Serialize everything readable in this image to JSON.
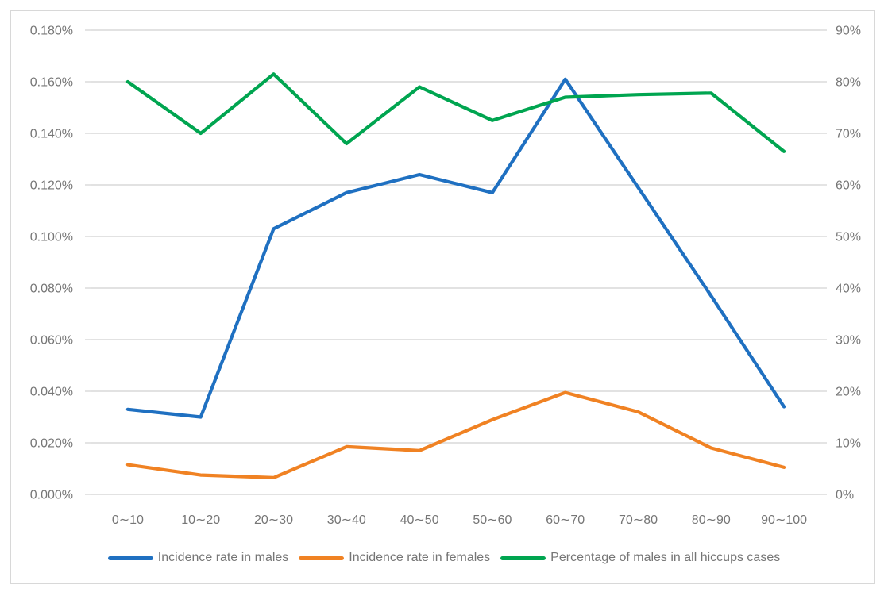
{
  "chart": {
    "background_color": "#ffffff",
    "border_color": "#d8d8d8",
    "gridline_color": "#d9d9d9",
    "axis_text_color": "#767676"
  },
  "chart_data": {
    "type": "line",
    "title": "",
    "xlabel": "",
    "ylabel_left": "",
    "ylabel_right": "",
    "grid": true,
    "legend_position": "bottom",
    "categories": [
      "0∼10",
      "10∼20",
      "20∼30",
      "30∼40",
      "40∼50",
      "50∼60",
      "60∼70",
      "70∼80",
      "80∼90",
      "90∼100"
    ],
    "series": [
      {
        "name": "Incidence rate in males",
        "axis": "left",
        "color": "#1f70c1",
        "values": [
          0.033,
          0.03,
          0.103,
          0.117,
          0.124,
          0.117,
          0.161,
          0.119,
          0.077,
          0.034
        ]
      },
      {
        "name": "Incidence rate in females",
        "axis": "left",
        "color": "#f08223",
        "values": [
          0.0115,
          0.0075,
          0.0065,
          0.0185,
          0.017,
          0.029,
          0.0395,
          0.032,
          0.018,
          0.0105
        ]
      },
      {
        "name": "Percentage of males in all hiccups cases",
        "axis": "right",
        "color": "#00a550",
        "values": [
          80,
          70,
          81.5,
          68,
          79,
          72.5,
          77,
          77.5,
          77.8,
          66.5
        ]
      }
    ],
    "left_axis": {
      "min": 0,
      "max": 0.18,
      "step": 0.02,
      "tick_labels": [
        "0.000%",
        "0.020%",
        "0.040%",
        "0.060%",
        "0.080%",
        "0.100%",
        "0.120%",
        "0.140%",
        "0.160%",
        "0.180%"
      ]
    },
    "right_axis": {
      "min": 0,
      "max": 90,
      "step": 10,
      "tick_labels": [
        "0%",
        "10%",
        "20%",
        "30%",
        "40%",
        "50%",
        "60%",
        "70%",
        "80%",
        "90%"
      ]
    }
  }
}
